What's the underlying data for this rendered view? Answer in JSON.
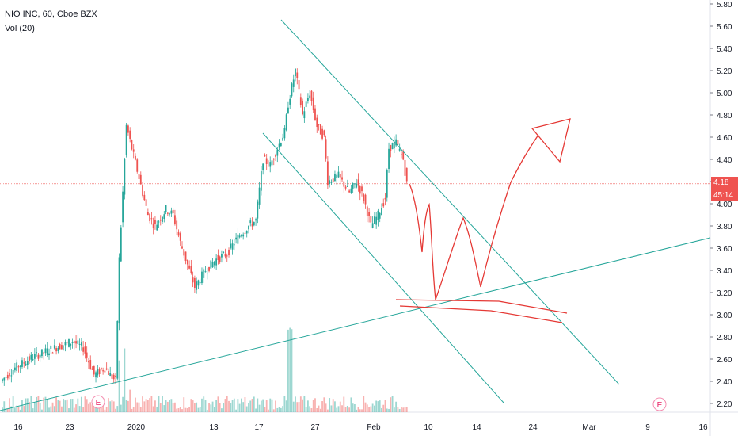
{
  "header": {
    "symbol_line": "NIO INC, 60, Cboe BZX",
    "indicator_line": "Vol (20)"
  },
  "price_tags": {
    "last_price": "4.18",
    "countdown": "45:14"
  },
  "earnings_marker": "E",
  "colors": {
    "up": "#26a69a",
    "down": "#ef5350",
    "trendline": "#26a69a",
    "drawing": "#e53935",
    "axis_text": "#131722",
    "grid": "#f0f3fa"
  },
  "chart_data": {
    "type": "candlestick",
    "title": "NIO INC, 60, Cboe BZX",
    "y_axis": {
      "ticks": [
        "5.80",
        "5.60",
        "5.40",
        "5.20",
        "5.00",
        "4.80",
        "4.60",
        "4.40",
        "4.20",
        "4.00",
        "3.80",
        "3.60",
        "3.40",
        "3.20",
        "3.00",
        "2.80",
        "2.60",
        "2.40",
        "2.20"
      ],
      "range": [
        2.15,
        5.82
      ]
    },
    "x_axis": {
      "ticks": [
        "16",
        "23",
        "2020",
        "13",
        "17",
        "27",
        "Feb",
        "10",
        "14",
        "24",
        "Mar",
        "9",
        "16"
      ]
    },
    "price_path": [
      [
        2.4,
        0
      ],
      [
        2.52,
        8
      ],
      [
        2.62,
        18
      ],
      [
        2.7,
        30
      ],
      [
        2.76,
        40
      ],
      [
        2.7,
        46
      ],
      [
        2.46,
        52
      ],
      [
        2.52,
        58
      ],
      [
        2.4,
        64
      ],
      [
        3.5,
        66
      ],
      [
        4.7,
        70
      ],
      [
        4.3,
        76
      ],
      [
        3.9,
        82
      ],
      [
        3.8,
        86
      ],
      [
        3.95,
        92
      ],
      [
        3.9,
        96
      ],
      [
        3.65,
        100
      ],
      [
        3.45,
        104
      ],
      [
        3.25,
        108
      ],
      [
        3.4,
        114
      ],
      [
        3.5,
        120
      ],
      [
        3.55,
        126
      ],
      [
        3.7,
        132
      ],
      [
        3.8,
        138
      ],
      [
        3.85,
        142
      ],
      [
        4.4,
        146
      ],
      [
        4.35,
        150
      ],
      [
        4.5,
        154
      ],
      [
        4.65,
        158
      ],
      [
        4.9,
        160
      ],
      [
        5.2,
        164
      ],
      [
        4.8,
        168
      ],
      [
        5.0,
        172
      ],
      [
        4.7,
        176
      ],
      [
        4.6,
        180
      ],
      [
        4.2,
        182
      ],
      [
        4.25,
        188
      ],
      [
        4.1,
        194
      ],
      [
        4.2,
        198
      ],
      [
        4.05,
        202
      ],
      [
        3.8,
        206
      ],
      [
        3.9,
        210
      ],
      [
        4.05,
        214
      ],
      [
        4.5,
        216
      ],
      [
        4.55,
        220
      ],
      [
        4.4,
        224
      ],
      [
        4.18,
        226
      ]
    ],
    "volume_note": "Vol (20)",
    "last_price": 4.18
  },
  "drawings": {
    "trendlines": [
      "upper-channel",
      "lower-channel",
      "long-support"
    ],
    "annotations": [
      "red-forecast-path",
      "red-arrow",
      "red-support-zone"
    ]
  }
}
